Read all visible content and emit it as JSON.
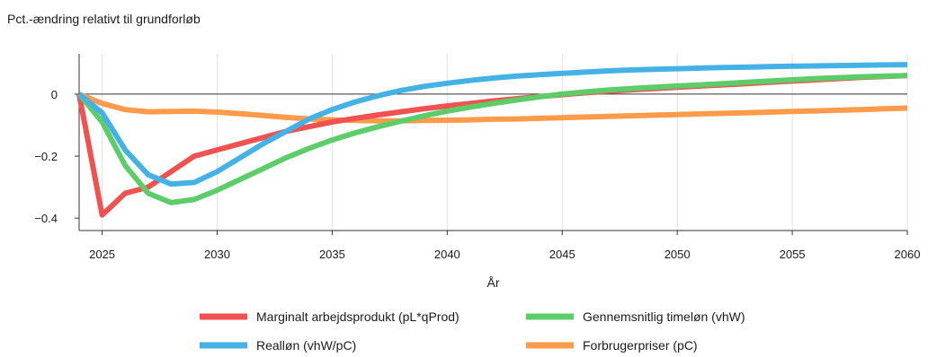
{
  "chart_data": {
    "type": "line",
    "title": "Pct.-ændring relativt til grundforløb",
    "xlabel": "År",
    "ylabel": "",
    "xlim": [
      2024,
      2060
    ],
    "ylim": [
      -0.44,
      0.13
    ],
    "x_ticks": [
      2025,
      2030,
      2035,
      2040,
      2045,
      2050,
      2055,
      2060
    ],
    "y_ticks": [
      0,
      -0.2,
      -0.4
    ],
    "y_tick_labels": [
      "0",
      "−0.2",
      "−0.4"
    ],
    "grid": "vertical",
    "legend_position": "bottom",
    "x": [
      2024,
      2025,
      2026,
      2027,
      2028,
      2029,
      2030,
      2031,
      2032,
      2033,
      2034,
      2035,
      2036,
      2037,
      2038,
      2039,
      2040,
      2041,
      2042,
      2043,
      2044,
      2045,
      2046,
      2047,
      2048,
      2049,
      2050,
      2051,
      2052,
      2053,
      2054,
      2055,
      2056,
      2057,
      2058,
      2059,
      2060
    ],
    "series": [
      {
        "name": "Marginalt arbejdsprodukt (pL*qProd)",
        "color": "#f05252",
        "values": [
          0,
          -0.39,
          -0.32,
          -0.3,
          -0.25,
          -0.2,
          -0.18,
          -0.16,
          -0.14,
          -0.12,
          -0.105,
          -0.09,
          -0.078,
          -0.067,
          -0.057,
          -0.047,
          -0.038,
          -0.03,
          -0.022,
          -0.015,
          -0.008,
          -0.002,
          0.004,
          0.009,
          0.014,
          0.018,
          0.022,
          0.026,
          0.03,
          0.034,
          0.038,
          0.042,
          0.046,
          0.05,
          0.054,
          0.057,
          0.06
        ]
      },
      {
        "name": "Gennemsnitlig timeløn (vhW)",
        "color": "#5ccd68",
        "values": [
          0,
          -0.09,
          -0.23,
          -0.32,
          -0.35,
          -0.34,
          -0.31,
          -0.275,
          -0.24,
          -0.205,
          -0.175,
          -0.148,
          -0.125,
          -0.105,
          -0.087,
          -0.07,
          -0.055,
          -0.042,
          -0.03,
          -0.019,
          -0.009,
          0,
          0.007,
          0.013,
          0.018,
          0.022,
          0.026,
          0.03,
          0.034,
          0.038,
          0.042,
          0.046,
          0.05,
          0.053,
          0.056,
          0.058,
          0.06
        ]
      },
      {
        "name": "Realløn (vhW/pC)",
        "color": "#45b2e5",
        "values": [
          0,
          -0.06,
          -0.18,
          -0.26,
          -0.29,
          -0.285,
          -0.25,
          -0.205,
          -0.16,
          -0.12,
          -0.08,
          -0.05,
          -0.025,
          -0.005,
          0.012,
          0.025,
          0.035,
          0.044,
          0.052,
          0.058,
          0.063,
          0.067,
          0.071,
          0.075,
          0.078,
          0.08,
          0.082,
          0.084,
          0.086,
          0.087,
          0.089,
          0.09,
          0.091,
          0.092,
          0.093,
          0.094,
          0.095
        ]
      },
      {
        "name": "Forbrugerpriser (pC)",
        "color": "#fd9b4b",
        "values": [
          0,
          -0.03,
          -0.05,
          -0.057,
          -0.056,
          -0.055,
          -0.058,
          -0.063,
          -0.069,
          -0.075,
          -0.08,
          -0.083,
          -0.085,
          -0.086,
          -0.086,
          -0.085,
          -0.084,
          -0.083,
          -0.081,
          -0.08,
          -0.078,
          -0.076,
          -0.074,
          -0.072,
          -0.07,
          -0.068,
          -0.066,
          -0.064,
          -0.062,
          -0.06,
          -0.058,
          -0.056,
          -0.054,
          -0.052,
          -0.05,
          -0.047,
          -0.045
        ]
      }
    ]
  }
}
